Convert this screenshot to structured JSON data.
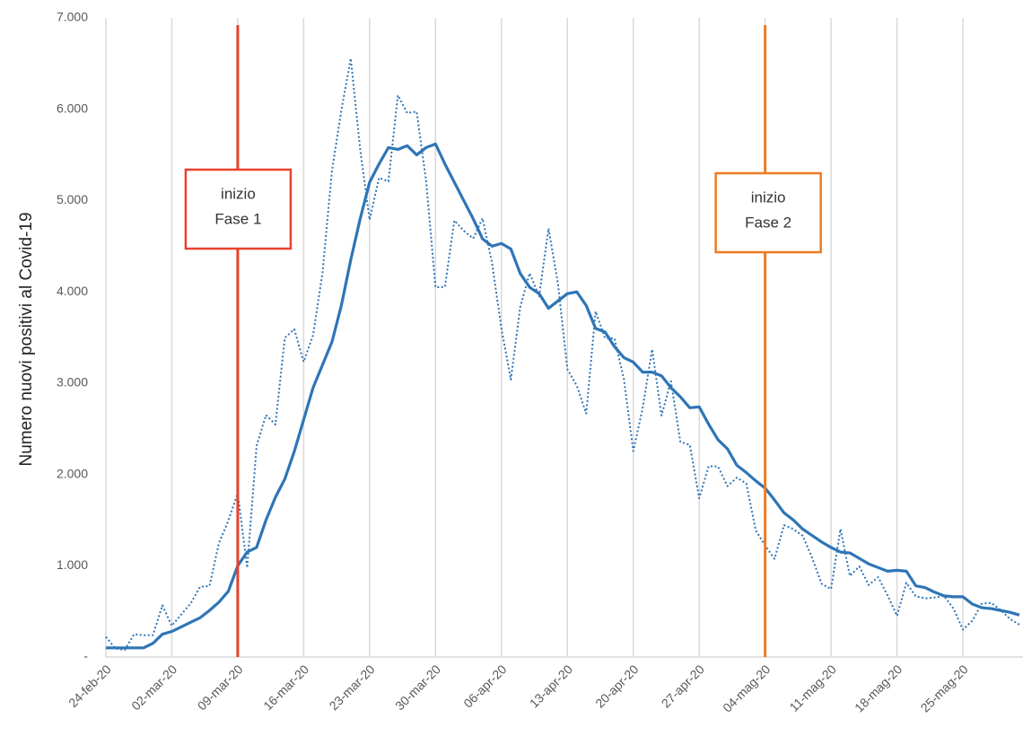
{
  "chart_data": {
    "type": "line",
    "ylabel": "Numero nuovi positivi al Covid-19",
    "x": [
      "24-feb-20",
      "25-feb-20",
      "26-feb-20",
      "27-feb-20",
      "28-feb-20",
      "29-feb-20",
      "01-mar-20",
      "02-mar-20",
      "03-mar-20",
      "04-mar-20",
      "05-mar-20",
      "06-mar-20",
      "07-mar-20",
      "08-mar-20",
      "09-mar-20",
      "10-mar-20",
      "11-mar-20",
      "12-mar-20",
      "13-mar-20",
      "14-mar-20",
      "15-mar-20",
      "16-mar-20",
      "17-mar-20",
      "18-mar-20",
      "19-mar-20",
      "20-mar-20",
      "21-mar-20",
      "22-mar-20",
      "23-mar-20",
      "24-mar-20",
      "25-mar-20",
      "26-mar-20",
      "27-mar-20",
      "28-mar-20",
      "29-mar-20",
      "30-mar-20",
      "31-mar-20",
      "01-apr-20",
      "02-apr-20",
      "03-apr-20",
      "04-apr-20",
      "05-apr-20",
      "06-apr-20",
      "07-apr-20",
      "08-apr-20",
      "09-apr-20",
      "10-apr-20",
      "11-apr-20",
      "12-apr-20",
      "13-apr-20",
      "14-apr-20",
      "15-apr-20",
      "16-apr-20",
      "17-apr-20",
      "18-apr-20",
      "19-apr-20",
      "20-apr-20",
      "21-apr-20",
      "22-apr-20",
      "23-apr-20",
      "24-apr-20",
      "25-apr-20",
      "26-apr-20",
      "27-apr-20",
      "28-apr-20",
      "29-apr-20",
      "30-apr-20",
      "01-mag-20",
      "02-mag-20",
      "03-mag-20",
      "04-mag-20",
      "05-mag-20",
      "06-mag-20",
      "07-mag-20",
      "08-mag-20",
      "09-mag-20",
      "10-mag-20",
      "11-mag-20",
      "12-mag-20",
      "13-mag-20",
      "14-mag-20",
      "15-mag-20",
      "16-mag-20",
      "17-mag-20",
      "18-mag-20",
      "19-mag-20",
      "20-mag-20",
      "21-mag-20",
      "22-mag-20",
      "23-mag-20",
      "24-mag-20",
      "25-mag-20",
      "26-mag-20",
      "27-mag-20",
      "28-mag-20",
      "29-mag-20",
      "30-mag-20",
      "31-mag-20"
    ],
    "series": [
      {
        "color": "#2e75b6",
        "style": "dotted",
        "values": [
          221,
          93,
          78,
          250,
          238,
          240,
          566,
          342,
          466,
          587,
          769,
          778,
          1247,
          1492,
          1797,
          977,
          2313,
          2651,
          2547,
          3497,
          3590,
          3233,
          3526,
          4207,
          5322,
          5986,
          6557,
          5560,
          4789,
          5249,
          5210,
          6153,
          5959,
          5974,
          5217,
          4050,
          4053,
          4782,
          4668,
          4585,
          4805,
          4316,
          3599,
          3039,
          3836,
          4204,
          3951,
          4694,
          4092,
          3153,
          2972,
          2667,
          3786,
          3493,
          3491,
          3047,
          2256,
          2729,
          3370,
          2646,
          3021,
          2357,
          2324,
          1739,
          2091,
          2086,
          1872,
          1965,
          1900,
          1389,
          1221,
          1075,
          1444,
          1401,
          1327,
          1083,
          802,
          744,
          1402,
          888,
          992,
          789,
          875,
          675,
          451,
          813,
          665,
          642,
          652,
          669,
          531,
          300,
          397,
          584,
          593,
          516,
          416,
          355
        ]
      },
      {
        "color": "#2e75b6",
        "style": "solid",
        "values": [
          100,
          100,
          100,
          100,
          100,
          150,
          250,
          280,
          330,
          380,
          430,
          510,
          600,
          720,
          1000,
          1150,
          1200,
          1500,
          1750,
          1950,
          2250,
          2600,
          2950,
          3200,
          3450,
          3850,
          4350,
          4800,
          5200,
          5400,
          5580,
          5560,
          5600,
          5500,
          5580,
          5620,
          5400,
          5200,
          5000,
          4800,
          4580,
          4500,
          4530,
          4470,
          4200,
          4050,
          3980,
          3820,
          3900,
          3980,
          4000,
          3850,
          3600,
          3560,
          3400,
          3280,
          3230,
          3120,
          3120,
          3080,
          2950,
          2850,
          2730,
          2740,
          2550,
          2380,
          2280,
          2100,
          2020,
          1930,
          1850,
          1720,
          1580,
          1500,
          1400,
          1330,
          1260,
          1200,
          1150,
          1140,
          1080,
          1020,
          980,
          940,
          950,
          940,
          780,
          760,
          710,
          670,
          660,
          660,
          580,
          540,
          530,
          510,
          490,
          460
        ]
      }
    ],
    "xticks": [
      "24-feb-20",
      "02-mar-20",
      "09-mar-20",
      "16-mar-20",
      "23-mar-20",
      "30-mar-20",
      "06-apr-20",
      "13-apr-20",
      "20-apr-20",
      "27-apr-20",
      "04-mag-20",
      "11-mag-20",
      "18-mag-20",
      "25-mag-20"
    ],
    "ylim": [
      0,
      7000
    ],
    "yticks": [
      {
        "value": 0,
        "label": "-"
      },
      {
        "value": 1000,
        "label": "1.000"
      },
      {
        "value": 2000,
        "label": "2.000"
      },
      {
        "value": 3000,
        "label": "3.000"
      },
      {
        "value": 4000,
        "label": "4.000"
      },
      {
        "value": 5000,
        "label": "5.000"
      },
      {
        "value": 6000,
        "label": "6.000"
      },
      {
        "value": 7000,
        "label": "7.000"
      }
    ],
    "grid": "x",
    "annotations": [
      {
        "x": "09-mar-20",
        "color": "#e8412c",
        "text": [
          "inizio",
          "Fase 1"
        ]
      },
      {
        "x": "04-mag-20",
        "color": "#f07a22",
        "text": [
          "inizio",
          "Fase 2"
        ]
      }
    ]
  }
}
